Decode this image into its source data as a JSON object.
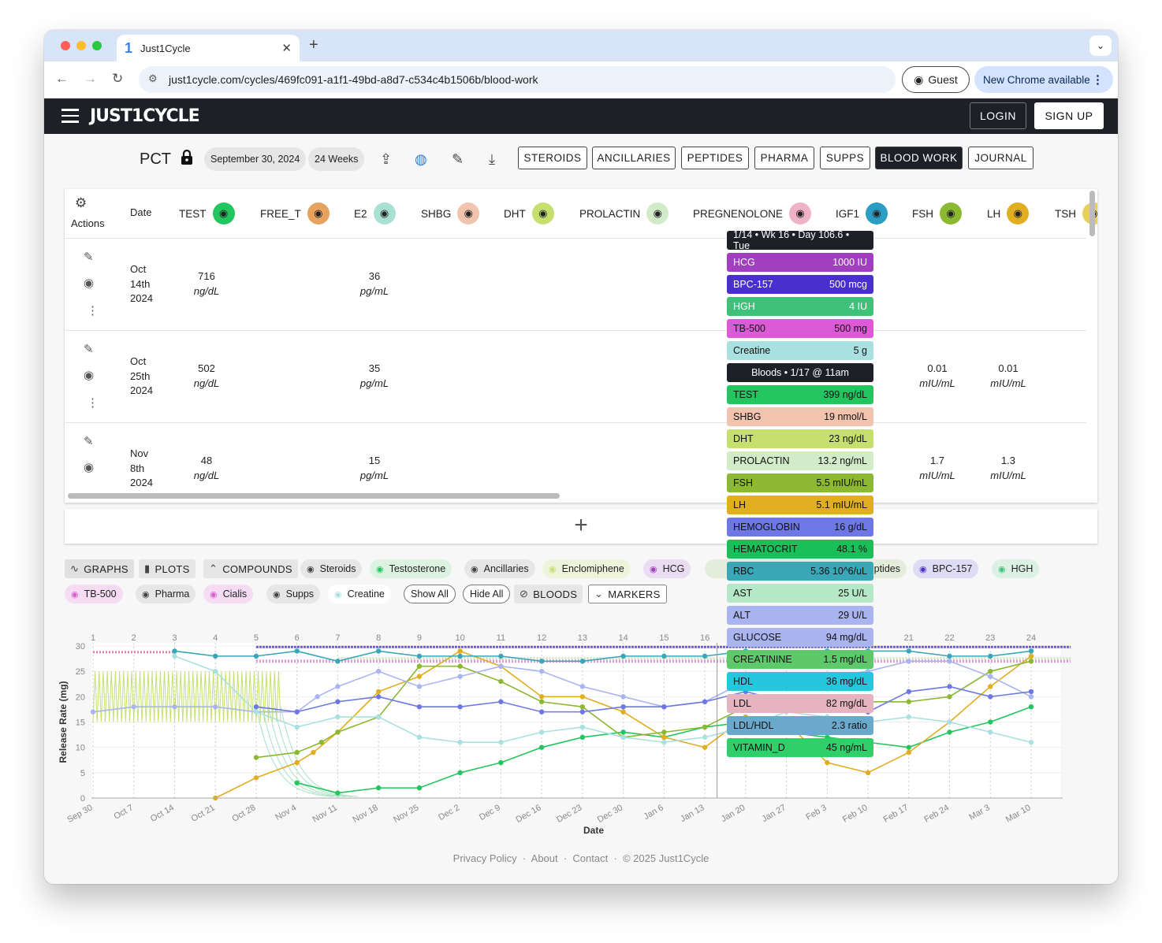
{
  "browser": {
    "tab_title": "Just1Cycle",
    "tab_favicon": "1",
    "url": "just1cycle.com/cycles/469fc091-a1f1-49bd-a8d7-c534c4b1506b/blood-work",
    "guest_label": "Guest",
    "update_label": "New Chrome available"
  },
  "app": {
    "logo": "JUST1CYCLE",
    "login": "LOGIN",
    "signup": "SIGN UP"
  },
  "cycle": {
    "name": "PCT",
    "start_date": "September 30, 2024",
    "duration": "24 Weeks",
    "tabs": [
      "STEROIDS",
      "ANCILLARIES",
      "PEPTIDES",
      "PHARMA",
      "SUPPS",
      "BLOOD WORK",
      "JOURNAL"
    ],
    "selected_tab": "BLOOD WORK"
  },
  "table": {
    "actions_label": "Actions",
    "date_label": "Date",
    "columns": [
      {
        "name": "TEST",
        "color": "#22c55e"
      },
      {
        "name": "FREE_T",
        "color": "#e6a25e"
      },
      {
        "name": "E2",
        "color": "#a8e0d4"
      },
      {
        "name": "SHBG",
        "color": "#f2c4ae"
      },
      {
        "name": "DHT",
        "color": "#c6e070"
      },
      {
        "name": "PROLACTIN",
        "color": "#d2ebc8"
      },
      {
        "name": "PREGNENOLONE",
        "color": "#f0b3c6"
      },
      {
        "name": "IGF1",
        "color": "#2b9dc4"
      },
      {
        "name": "FSH",
        "color": "#8cb832"
      },
      {
        "name": "LH",
        "color": "#e0ae20"
      },
      {
        "name": "TSH",
        "color": "#e8d060"
      }
    ],
    "rows": [
      {
        "date": [
          "Oct",
          "14th",
          "2024"
        ],
        "test": "716",
        "test_unit": "ng/dL",
        "e2": "36",
        "e2_unit": "pg/mL",
        "fsh": "",
        "fsh_unit": "",
        "lh": "",
        "lh_unit": ""
      },
      {
        "date": [
          "Oct",
          "25th",
          "2024"
        ],
        "test": "502",
        "test_unit": "ng/dL",
        "e2": "35",
        "e2_unit": "pg/mL",
        "fsh": "0.01",
        "fsh_unit": "mIU/mL",
        "lh": "0.01",
        "lh_unit": "mIU/mL"
      },
      {
        "date": [
          "Nov",
          "8th",
          "2024"
        ],
        "test": "48",
        "test_unit": "ng/dL",
        "e2": "15",
        "e2_unit": "pg/mL",
        "fsh": "1.7",
        "fsh_unit": "mIU/mL",
        "lh": "1.3",
        "lh_unit": "mIU/mL"
      }
    ]
  },
  "tooltip": {
    "header": "1/14 • Wk 16 • Day 106.6 • Tue",
    "doses": [
      {
        "name": "HCG",
        "value": "1000 IU",
        "color": "#a23fbe"
      },
      {
        "name": "BPC-157",
        "value": "500 mcg",
        "color": "#4a2fd0"
      },
      {
        "name": "HGH",
        "value": "4 IU",
        "color": "#3ec27a"
      },
      {
        "name": "TB-500",
        "value": "500 mg",
        "color": "#dc5ad6"
      },
      {
        "name": "Creatine",
        "value": "5 g",
        "color": "#a9e1e0"
      }
    ],
    "bloods_header": "Bloods • 1/17 @ 11am",
    "bloods": [
      {
        "name": "TEST",
        "value": "399 ng/dL",
        "color": "#22c55e"
      },
      {
        "name": "SHBG",
        "value": "19 nmol/L",
        "color": "#f2c4ae"
      },
      {
        "name": "DHT",
        "value": "23 ng/dL",
        "color": "#c6e070"
      },
      {
        "name": "PROLACTIN",
        "value": "13.2 ng/mL",
        "color": "#d2ebc8"
      },
      {
        "name": "FSH",
        "value": "5.5 mIU/mL",
        "color": "#8cb832"
      },
      {
        "name": "LH",
        "value": "5.1 mIU/mL",
        "color": "#e0ae20"
      },
      {
        "name": "HEMOGLOBIN",
        "value": "16 g/dL",
        "color": "#6d78e6"
      },
      {
        "name": "HEMATOCRIT",
        "value": "48.1 %",
        "color": "#19c05a"
      },
      {
        "name": "RBC",
        "value": "5.36 10^6/uL",
        "color": "#3aa7b8"
      },
      {
        "name": "AST",
        "value": "25 U/L",
        "color": "#b5e8c6"
      },
      {
        "name": "ALT",
        "value": "29 U/L",
        "color": "#a9b4f0"
      },
      {
        "name": "GLUCOSE",
        "value": "94 mg/dL",
        "color": "#a9b4f0"
      },
      {
        "name": "CREATININE",
        "value": "1.5 mg/dL",
        "color": "#5dc96a"
      },
      {
        "name": "HDL",
        "value": "36 mg/dL",
        "color": "#26c6dc"
      },
      {
        "name": "LDL",
        "value": "82 mg/dL",
        "color": "#e6b4c0"
      },
      {
        "name": "LDL/HDL",
        "value": "2.3 ratio",
        "color": "#6aa9cc"
      },
      {
        "name": "VITAMIN_D",
        "value": "45 ng/mL",
        "color": "#2fcf6a"
      }
    ]
  },
  "filters": {
    "graphs": "GRAPHS",
    "plots": "PLOTS",
    "compounds": "COMPOUNDS",
    "steroids": "Steroids",
    "testosterone": "Testosterone",
    "ancillaries": "Ancillaries",
    "enclomiphene": "Enclomiphene",
    "hcg": "HCG",
    "peptides": "Peptides",
    "bpc157": "BPC-157",
    "hgh": "HGH",
    "tb500": "TB-500",
    "pharma": "Pharma",
    "cialis": "Cialis",
    "supps": "Supps",
    "creatine": "Creatine",
    "show_all": "Show All",
    "hide_all": "Hide All",
    "bloods": "BLOODS",
    "markers": "MARKERS"
  },
  "chart_data": {
    "type": "line",
    "xlabel": "Date",
    "ylabel": "Release Rate (mg)",
    "ylim": [
      0,
      30
    ],
    "y_ticks": [
      "0",
      "5",
      "10",
      "15",
      "20",
      "25",
      "30"
    ],
    "week_ticks": [
      "1",
      "2",
      "3",
      "4",
      "5",
      "6",
      "7",
      "8",
      "9",
      "10",
      "11",
      "12",
      "13",
      "14",
      "15",
      "16",
      "17",
      "18",
      "19",
      "20",
      "21",
      "22",
      "23",
      "24"
    ],
    "date_ticks": [
      "Sep 30",
      "Oct 7",
      "Oct 14",
      "Oct 21",
      "Oct 28",
      "Nov 4",
      "Nov 11",
      "Nov 18",
      "Nov 25",
      "Dec 2",
      "Dec 9",
      "Dec 16",
      "Dec 23",
      "Dec 30",
      "Jan 6",
      "Jan 13",
      "Jan 20",
      "Jan 27",
      "Feb 3",
      "Feb 10",
      "Feb 17",
      "Feb 24",
      "Mar 3",
      "Mar 10"
    ],
    "series": [
      {
        "color": "#22c55e",
        "x": [
          6,
          7,
          8,
          9,
          10,
          11,
          12,
          13,
          14,
          15,
          16,
          17,
          18,
          19,
          20,
          21,
          22,
          23,
          24
        ],
        "y": [
          3,
          1,
          2,
          2,
          5,
          7,
          10,
          12,
          13,
          12,
          14,
          15,
          13,
          12,
          11,
          10,
          13,
          15,
          18
        ]
      },
      {
        "color": "#e0ae20",
        "x": [
          4,
          5,
          6,
          6.4,
          7,
          8,
          9,
          10,
          11,
          12,
          13,
          14,
          15,
          16,
          17,
          18,
          19,
          20,
          21,
          22,
          23,
          24
        ],
        "y": [
          0,
          4,
          7,
          9,
          13,
          21,
          24,
          29,
          26,
          20,
          20,
          17,
          12,
          10,
          16,
          15,
          7,
          5,
          9,
          15,
          22,
          28
        ]
      },
      {
        "color": "#8cb832",
        "x": [
          5,
          6,
          6.6,
          7,
          8,
          9,
          10,
          11,
          12,
          13,
          14,
          15,
          16,
          17,
          18,
          19,
          20,
          21,
          22,
          23,
          24
        ],
        "y": [
          8,
          9,
          11,
          13,
          16,
          26,
          26,
          23,
          19,
          18,
          12,
          13,
          14,
          18,
          19,
          19,
          19,
          19,
          20,
          25,
          27
        ]
      },
      {
        "color": "#3aa7b8",
        "x": [
          3,
          4,
          5,
          6,
          7,
          8,
          9,
          10,
          11,
          12,
          13,
          14,
          15,
          16,
          17,
          18,
          19,
          20,
          21,
          22,
          23,
          24
        ],
        "y": [
          29,
          28,
          28,
          29,
          27,
          29,
          28,
          28,
          28,
          27,
          27,
          28,
          28,
          28,
          29,
          28,
          29,
          29,
          29,
          28,
          28,
          29
        ]
      },
      {
        "color": "#a9b4f0",
        "x": [
          1,
          2,
          3,
          4,
          5,
          6,
          6.5,
          7,
          8,
          9,
          10,
          11,
          12,
          13,
          14,
          15,
          16,
          17,
          18,
          19,
          20,
          21,
          22,
          23,
          24
        ],
        "y": [
          17,
          18,
          18,
          18,
          17,
          17,
          20,
          22,
          25,
          22,
          24,
          26,
          25,
          22,
          20,
          18,
          19,
          23,
          24,
          24,
          25,
          27,
          27,
          24,
          20
        ]
      },
      {
        "color": "#a9e1e0",
        "x": [
          3,
          4,
          5,
          6,
          7,
          8,
          9,
          10,
          11,
          12,
          13,
          14,
          15,
          16,
          17,
          18,
          19,
          20,
          21,
          22,
          23,
          24
        ],
        "y": [
          28,
          25,
          17,
          14,
          16,
          16,
          12,
          11,
          11,
          13,
          14,
          12,
          11,
          12,
          14,
          17,
          16,
          15,
          16,
          15,
          13,
          11
        ]
      },
      {
        "color": "#6d78e6",
        "x": [
          5,
          6,
          7,
          8,
          9,
          10,
          11,
          12,
          13,
          14,
          15,
          16,
          17,
          18,
          19,
          20,
          21,
          22,
          23,
          24
        ],
        "y": [
          18,
          17,
          19,
          20,
          18,
          18,
          19,
          17,
          17,
          18,
          18,
          19,
          21,
          19,
          18,
          17,
          21,
          22,
          20,
          21
        ]
      }
    ]
  }
}
